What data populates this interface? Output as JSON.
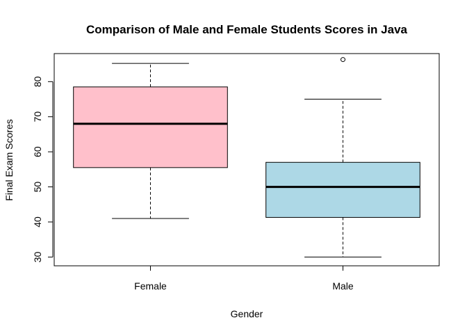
{
  "chart_data": {
    "type": "box",
    "title": "Comparison of Male and Female Students Scores in Java",
    "xlabel": "Gender",
    "ylabel": "Final Exam Scores",
    "ylim": [
      27.5,
      88
    ],
    "yticks": [
      30,
      40,
      50,
      60,
      70,
      80
    ],
    "categories": [
      "Female",
      "Male"
    ],
    "boxes": [
      {
        "category": "Female",
        "min": 41,
        "q1": 55.5,
        "median": 68,
        "q3": 78.5,
        "max": 85.2,
        "outliers": [],
        "color": "#FFC0CB"
      },
      {
        "category": "Male",
        "min": 30,
        "q1": 41.3,
        "median": 50,
        "q3": 57,
        "max": 75,
        "outliers": [
          86.3
        ],
        "color": "#ADD8E6"
      }
    ],
    "grid": false,
    "legend": "none"
  }
}
